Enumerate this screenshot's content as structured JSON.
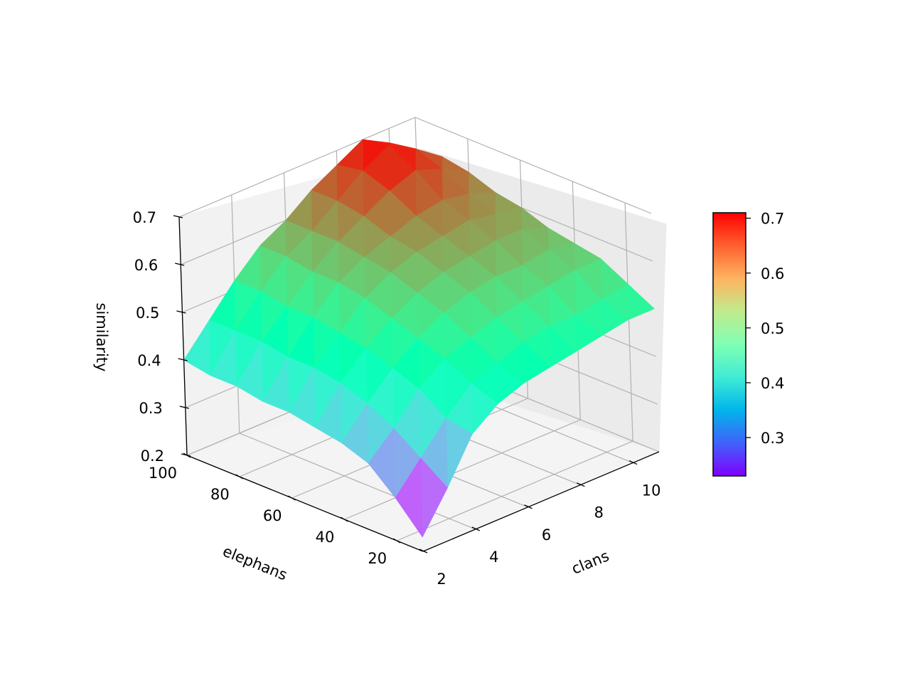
{
  "chart_data": {
    "type": "surface3d",
    "zlabel": "similarity",
    "xlabel": "clans",
    "ylabel": "elephans",
    "x_ticks": [
      "2",
      "4",
      "6",
      "8",
      "10"
    ],
    "y_ticks": [
      "20",
      "40",
      "60",
      "80",
      "100"
    ],
    "z_ticks": [
      "0.2",
      "0.3",
      "0.4",
      "0.5",
      "0.6",
      "0.7"
    ],
    "colorbar_ticks": [
      "0.3",
      "0.4",
      "0.5",
      "0.6",
      "0.7"
    ],
    "colormap": "rainbow",
    "vmin": 0.23,
    "vmax": 0.71,
    "grid": true,
    "x": [
      2,
      3,
      4,
      5,
      6,
      7,
      8,
      9,
      10,
      11
    ],
    "y": [
      10,
      20,
      30,
      40,
      50,
      60,
      70,
      80,
      90,
      100
    ],
    "z": [
      [
        0.23,
        0.31,
        0.4,
        0.44,
        0.46,
        0.47,
        0.48,
        0.49,
        0.5,
        0.5
      ],
      [
        0.29,
        0.35,
        0.41,
        0.46,
        0.48,
        0.5,
        0.51,
        0.51,
        0.52,
        0.53
      ],
      [
        0.34,
        0.39,
        0.45,
        0.49,
        0.51,
        0.53,
        0.54,
        0.55,
        0.56,
        0.56
      ],
      [
        0.36,
        0.42,
        0.47,
        0.51,
        0.54,
        0.56,
        0.57,
        0.57,
        0.58,
        0.57
      ],
      [
        0.37,
        0.44,
        0.49,
        0.53,
        0.56,
        0.58,
        0.59,
        0.6,
        0.6,
        0.58
      ],
      [
        0.38,
        0.45,
        0.5,
        0.55,
        0.58,
        0.6,
        0.61,
        0.62,
        0.61,
        0.6
      ],
      [
        0.38,
        0.45,
        0.51,
        0.56,
        0.59,
        0.61,
        0.63,
        0.64,
        0.63,
        0.61
      ],
      [
        0.39,
        0.46,
        0.51,
        0.56,
        0.6,
        0.63,
        0.66,
        0.68,
        0.66,
        0.63
      ],
      [
        0.39,
        0.46,
        0.52,
        0.57,
        0.6,
        0.64,
        0.68,
        0.71,
        0.68,
        0.64
      ],
      [
        0.4,
        0.46,
        0.52,
        0.57,
        0.6,
        0.64,
        0.67,
        0.7,
        0.67,
        0.62
      ]
    ]
  }
}
